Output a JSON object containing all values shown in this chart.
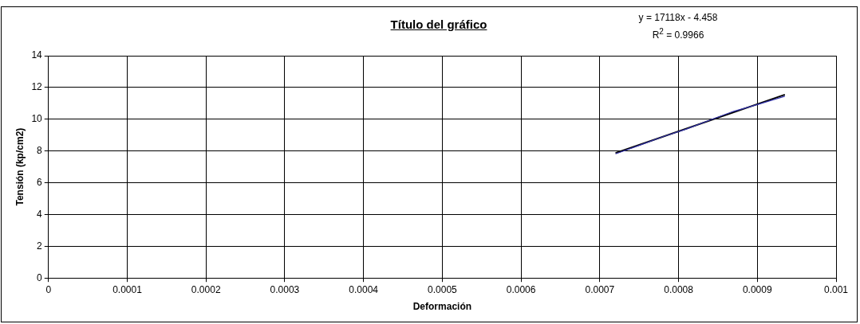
{
  "chart_data": {
    "type": "line",
    "title": "Título del gráfico",
    "xlabel": "Deformación",
    "ylabel": "Tensión (kp/cm2)",
    "annotations": [
      "y = 17118x - 4.458",
      "R$^{2}$ = 0.9966"
    ],
    "xlim": [
      0,
      0.001
    ],
    "xticks": [
      0,
      0.0001,
      0.0002,
      0.0003,
      0.0004,
      0.0005,
      0.0006,
      0.0007,
      0.0008,
      0.0009,
      0.001
    ],
    "ylim": [
      0,
      14
    ],
    "yticks": [
      0,
      2,
      4,
      6,
      8,
      10,
      12,
      14
    ],
    "grid": true,
    "legend": false,
    "marker": "none",
    "series": [
      {
        "color": "#3333aa",
        "x": [
          0.00072,
          0.00075,
          0.00078,
          0.00081,
          0.00084,
          0.00087,
          0.0009,
          0.000935
        ],
        "values": [
          7.82,
          8.35,
          8.9,
          9.38,
          9.95,
          10.5,
          10.92,
          11.45
        ]
      },
      {
        "type": "line",
        "color": "#000000",
        "x": [
          0.00072,
          0.000935
        ],
        "values": [
          7.87,
          11.55
        ]
      }
    ]
  }
}
